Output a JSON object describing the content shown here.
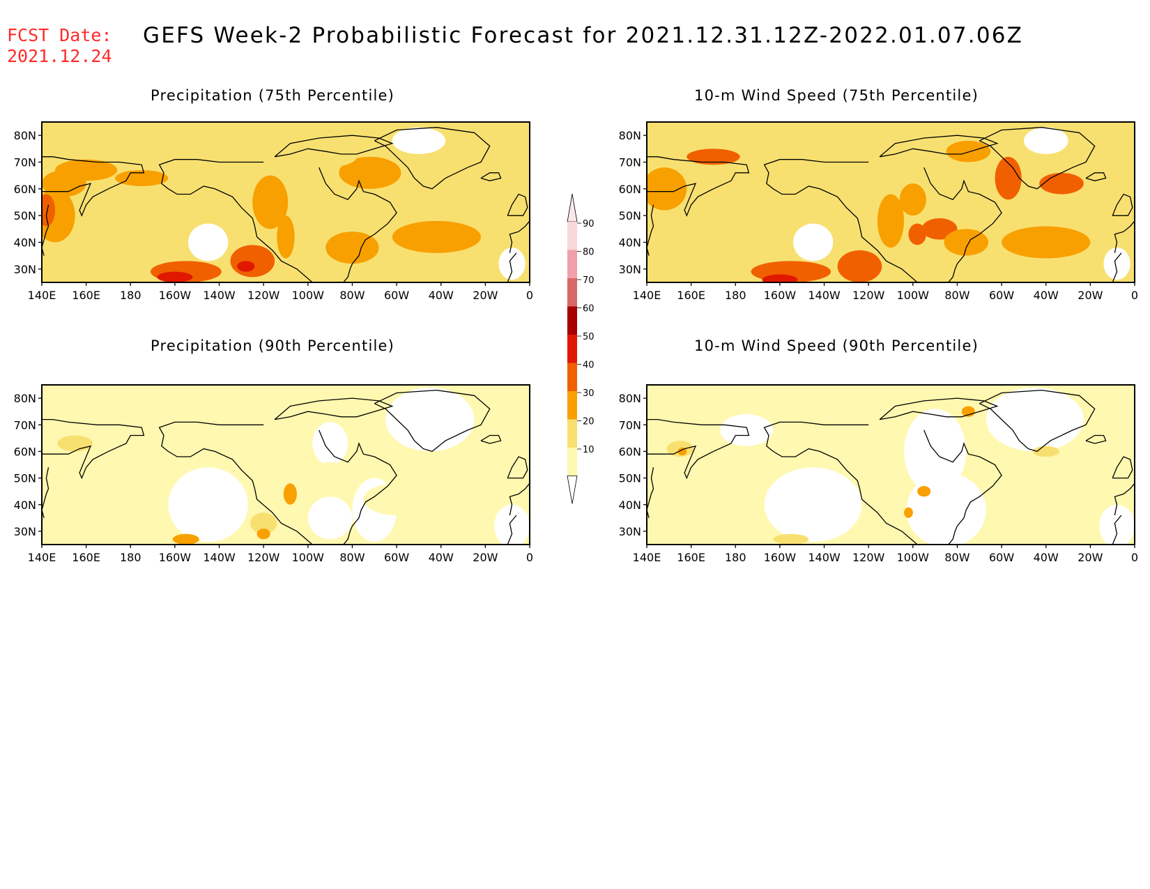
{
  "header": {
    "fcst_label": "FCST Date:",
    "fcst_date": "2021.12.24",
    "title": "GEFS Week-2 Probabilistic Forecast for 2021.12.31.12Z-2022.01.07.06Z"
  },
  "axes": {
    "lon_ticks": [
      "140E",
      "160E",
      "180",
      "160W",
      "140W",
      "120W",
      "100W",
      "80W",
      "60W",
      "40W",
      "20W",
      "0"
    ],
    "lat_ticks": [
      "80N",
      "70N",
      "60N",
      "50N",
      "40N",
      "30N"
    ],
    "lon_range_deg_east": [
      140,
      360
    ],
    "lat_range_deg_north": [
      25,
      85
    ]
  },
  "panels": [
    {
      "id": "precip75",
      "title": "Precipitation (75th Percentile)",
      "variable": "Precipitation",
      "percentile": "75th"
    },
    {
      "id": "wind75",
      "title": "10-m Wind Speed (75th Percentile)",
      "variable": "10-m Wind Speed",
      "percentile": "75th"
    },
    {
      "id": "precip90",
      "title": "Precipitation (90th Percentile)",
      "variable": "Precipitation",
      "percentile": "90th"
    },
    {
      "id": "wind90",
      "title": "10-m Wind Speed (90th Percentile)",
      "variable": "10-m Wind Speed",
      "percentile": "90th"
    }
  ],
  "colorbar": {
    "labels": [
      "90",
      "80",
      "70",
      "60",
      "50",
      "40",
      "30",
      "20",
      "10"
    ],
    "colors": [
      "#f8d8d8",
      "#f0a0a8",
      "#d86868",
      "#a80000",
      "#e01800",
      "#f06000",
      "#f8a000",
      "#f8e070",
      "#fff8b0"
    ]
  },
  "legend_colors": {
    "level_10": "#fff8b0",
    "level_20": "#f8e070",
    "level_30": "#f8a000",
    "level_40": "#f06000",
    "level_50": "#e01800",
    "level_60": "#a80000",
    "coast": "#000000"
  }
}
